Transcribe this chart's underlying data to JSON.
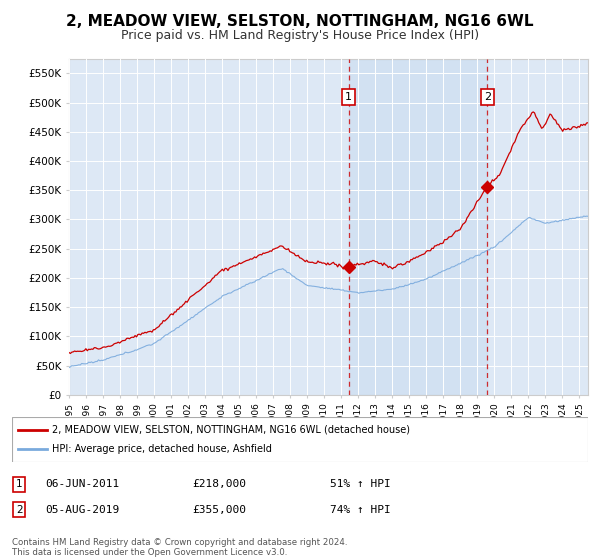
{
  "title": "2, MEADOW VIEW, SELSTON, NOTTINGHAM, NG16 6WL",
  "subtitle": "Price paid vs. HM Land Registry's House Price Index (HPI)",
  "title_fontsize": 11,
  "subtitle_fontsize": 9,
  "background_color": "#ffffff",
  "plot_bg_color": "#dde8f5",
  "grid_color": "#ffffff",
  "shade_color": "#c8d8ee",
  "ylabel_ticks": [
    "£0",
    "£50K",
    "£100K",
    "£150K",
    "£200K",
    "£250K",
    "£300K",
    "£350K",
    "£400K",
    "£450K",
    "£500K",
    "£550K"
  ],
  "ylabel_values": [
    0,
    50000,
    100000,
    150000,
    200000,
    250000,
    300000,
    350000,
    400000,
    450000,
    500000,
    550000
  ],
  "ylim": [
    0,
    575000
  ],
  "xlim_start": 1995.0,
  "xlim_end": 2025.5,
  "xtick_years": [
    1995,
    1996,
    1997,
    1998,
    1999,
    2000,
    2001,
    2002,
    2003,
    2004,
    2005,
    2006,
    2007,
    2008,
    2009,
    2010,
    2011,
    2012,
    2013,
    2014,
    2015,
    2016,
    2017,
    2018,
    2019,
    2020,
    2021,
    2022,
    2023,
    2024,
    2025
  ],
  "red_line_color": "#cc0000",
  "blue_line_color": "#7aaadd",
  "sale1_x": 2011.44,
  "sale1_y": 218000,
  "sale1_label": "1",
  "sale1_date": "06-JUN-2011",
  "sale1_price": "£218,000",
  "sale1_hpi": "51% ↑ HPI",
  "sale2_x": 2019.59,
  "sale2_y": 355000,
  "sale2_label": "2",
  "sale2_date": "05-AUG-2019",
  "sale2_price": "£355,000",
  "sale2_hpi": "74% ↑ HPI",
  "legend_line1": "2, MEADOW VIEW, SELSTON, NOTTINGHAM, NG16 6WL (detached house)",
  "legend_line2": "HPI: Average price, detached house, Ashfield",
  "footer": "Contains HM Land Registry data © Crown copyright and database right 2024.\nThis data is licensed under the Open Government Licence v3.0."
}
